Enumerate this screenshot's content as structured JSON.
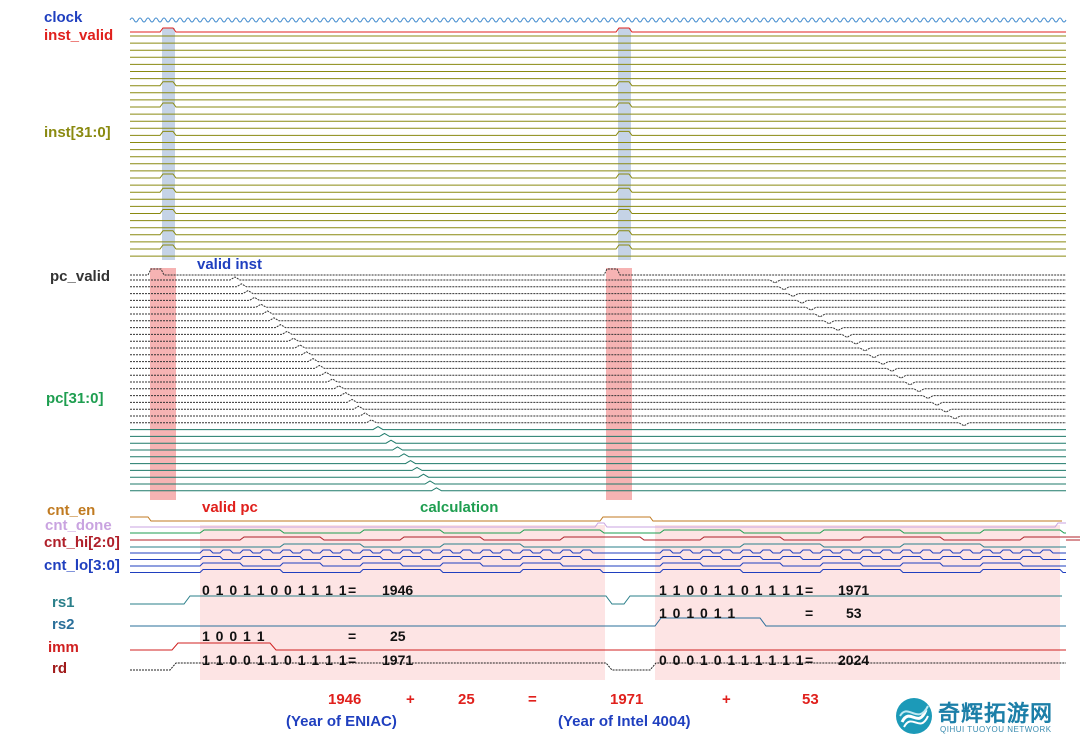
{
  "signals": {
    "clock": {
      "label": "clock",
      "color": "#1f3fbf"
    },
    "inst_valid": {
      "label": "inst_valid",
      "color": "#e0201c"
    },
    "inst": {
      "label": "inst[31:0]",
      "color": "#8a8a10"
    },
    "pc_valid": {
      "label": "pc_valid",
      "color": "#333333"
    },
    "pc": {
      "label": "pc[31:0]",
      "color": "#1e9e50"
    },
    "cnt_en": {
      "label": "cnt_en",
      "color": "#c07a20"
    },
    "cnt_done": {
      "label": "cnt_done",
      "color": "#c9a3e0"
    },
    "cnt_hi": {
      "label": "cnt_hi[2:0]",
      "color": "#b0202a"
    },
    "cnt_lo": {
      "label": "cnt_lo[3:0]",
      "color": "#1f3fbf"
    },
    "rs1": {
      "label": "rs1",
      "color": "#2a7f8a"
    },
    "rs2": {
      "label": "rs2",
      "color": "#2a6f9a"
    },
    "imm": {
      "label": "imm",
      "color": "#d02020"
    },
    "rd": {
      "label": "rd",
      "color": "#a01a1a"
    }
  },
  "annotations": {
    "valid_inst": {
      "text": "valid inst",
      "color": "#1f3fbf"
    },
    "valid_pc": {
      "text": "valid pc",
      "color": "#e0201c"
    },
    "calculation": {
      "text": "calculation",
      "color": "#1e9e50"
    }
  },
  "values": {
    "rs1_a_bits": "0 1 0 1 1 0 0 1 1 1 1",
    "rs1_a_eq": "=",
    "rs1_a_dec": "1946",
    "imm_a_bits": "1 0 0 1 1",
    "imm_a_eq": "=",
    "imm_a_dec": "25",
    "rd_a_bits": "1 1 0 0 1 1 0 1 1 1 1",
    "rd_a_eq": "=",
    "rd_a_dec": "1971",
    "rs1_b_bits": "1 1 0 0 1 1 0 1 1 1 1",
    "rs1_b_eq": "=",
    "rs1_b_dec": "1971",
    "rs2_b_bits": "1 0 1 0 1 1",
    "rs2_b_eq": "=",
    "rs2_b_dec": "53",
    "rd_b_bits": "0 0 0 1 0 1 1 1 1 1 1",
    "rd_b_eq": "=",
    "rd_b_dec": "2024"
  },
  "formula": {
    "n1": "1946",
    "plus1": "+",
    "n2": "25",
    "eq": "=",
    "n3": "1971",
    "plus2": "+",
    "n4": "53",
    "cap1": "(Year of ENIAC)",
    "cap2": "(Year of Intel 4004)"
  },
  "highlights": {
    "inst_band_color": "#c5d3e6",
    "pc_band_color": "#f4a6a6",
    "calc_region_color": "#fde4e4"
  },
  "logo": {
    "cn": "奇辉拓游网",
    "en": "QIHUI TUOYOU NETWORK",
    "icon": "ribbon-logo-icon"
  }
}
